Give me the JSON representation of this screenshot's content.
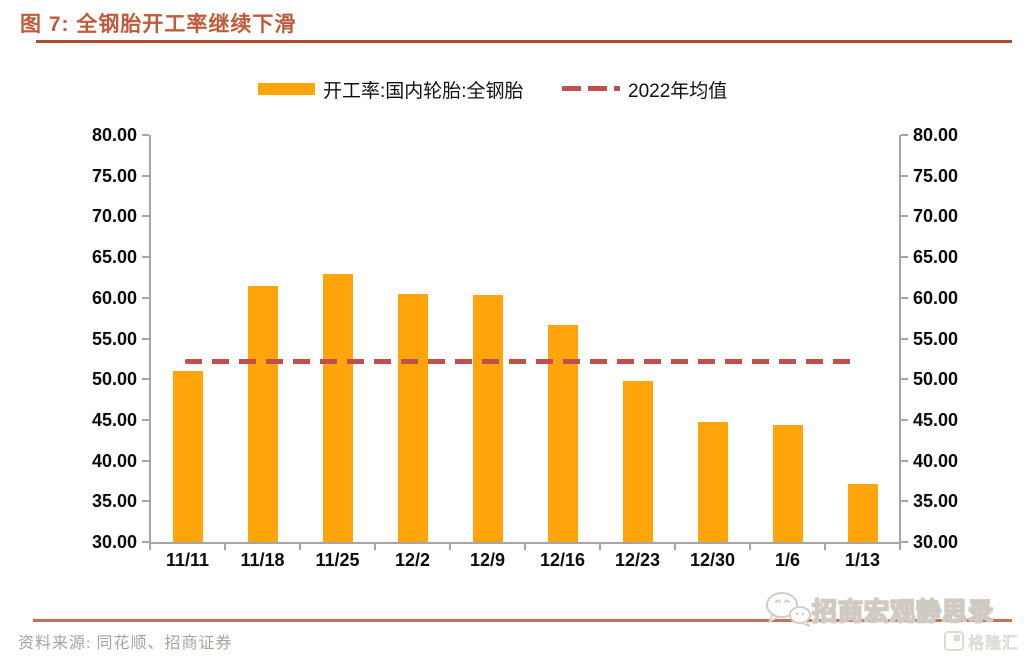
{
  "figure": {
    "title": "图 7:  全钢胎开工率继续下滑",
    "source": "资料来源:  同花顺、招商证券"
  },
  "legend": {
    "bar_label": "开工率:国内轮胎:全钢胎",
    "line_label": "2022年均值"
  },
  "chart_data": {
    "type": "bar",
    "title": "全钢胎开工率继续下滑",
    "categories": [
      "11/11",
      "11/18",
      "11/25",
      "12/2",
      "12/9",
      "12/16",
      "12/23",
      "12/30",
      "1/6",
      "1/13"
    ],
    "series": [
      {
        "name": "开工率:国内轮胎:全钢胎",
        "type": "bar",
        "values": [
          51.0,
          61.5,
          62.9,
          60.5,
          60.3,
          56.6,
          49.8,
          44.8,
          44.4,
          37.1
        ]
      },
      {
        "name": "2022年均值",
        "type": "dashed-line",
        "value": 52.2
      }
    ],
    "ylim": [
      30,
      80
    ],
    "ytick_step": 5,
    "ytick_format": "two-decimals",
    "dual_axis": true,
    "grid": false,
    "legend_position": "top-center"
  },
  "colors": {
    "bar": "#FFA40A",
    "mean_line": "#C0504D",
    "title": "#BE5B3B",
    "title_rule": "#B24A31",
    "bottom_rule": "#C47257",
    "axis": "#A6A6A6",
    "label": "#0b0b0b",
    "source_text": "#A9A49B"
  },
  "watermark": {
    "wechat_icon": "wechat-icon",
    "wechat_label": "招商宏观静思录",
    "logo_icon": "gelonghui-logo",
    "logo_label": "格隆汇"
  }
}
